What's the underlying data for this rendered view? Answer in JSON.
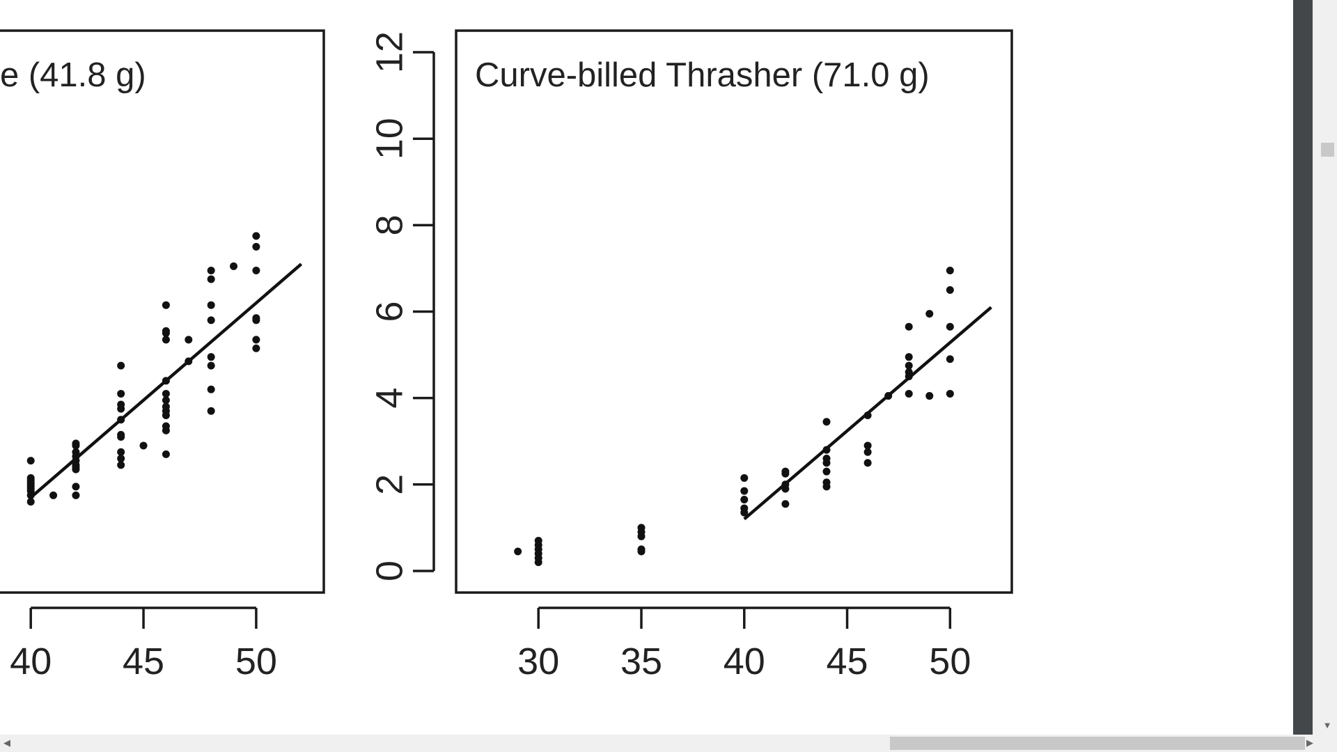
{
  "chart_data": [
    {
      "type": "scatter",
      "title": "e (41.8 g)",
      "xlim": [
        37.8,
        53.0
      ],
      "ylim": [
        -0.5,
        12.5
      ],
      "x_ticks": [
        40,
        45,
        50
      ],
      "x_tick_labels": [
        "40",
        "45",
        "50"
      ],
      "y_ticks": [],
      "points": [
        [
          40,
          1.6
        ],
        [
          40,
          1.75
        ],
        [
          40,
          1.85
        ],
        [
          40,
          1.9
        ],
        [
          40,
          1.95
        ],
        [
          40,
          2.0
        ],
        [
          40,
          2.05
        ],
        [
          40,
          2.1
        ],
        [
          40,
          2.15
        ],
        [
          40,
          2.55
        ],
        [
          41,
          1.75
        ],
        [
          42,
          1.75
        ],
        [
          42,
          1.95
        ],
        [
          42,
          2.35
        ],
        [
          42,
          2.4
        ],
        [
          42,
          2.45
        ],
        [
          42,
          2.55
        ],
        [
          42,
          2.65
        ],
        [
          42,
          2.75
        ],
        [
          42,
          2.9
        ],
        [
          42,
          2.95
        ],
        [
          44,
          2.45
        ],
        [
          44,
          2.6
        ],
        [
          44,
          2.75
        ],
        [
          44,
          3.1
        ],
        [
          44,
          3.15
        ],
        [
          44,
          3.5
        ],
        [
          44,
          3.75
        ],
        [
          44,
          3.85
        ],
        [
          44,
          4.1
        ],
        [
          44,
          4.75
        ],
        [
          45,
          2.9
        ],
        [
          46,
          2.7
        ],
        [
          46,
          3.25
        ],
        [
          46,
          3.35
        ],
        [
          46,
          3.6
        ],
        [
          46,
          3.7
        ],
        [
          46,
          3.8
        ],
        [
          46,
          3.95
        ],
        [
          46,
          4.1
        ],
        [
          46,
          4.4
        ],
        [
          46,
          5.35
        ],
        [
          46,
          5.5
        ],
        [
          46,
          5.55
        ],
        [
          46,
          6.15
        ],
        [
          47,
          4.85
        ],
        [
          47,
          5.35
        ],
        [
          48,
          3.7
        ],
        [
          48,
          4.2
        ],
        [
          48,
          4.75
        ],
        [
          48,
          4.95
        ],
        [
          48,
          5.8
        ],
        [
          48,
          6.15
        ],
        [
          48,
          6.75
        ],
        [
          48,
          6.95
        ],
        [
          49,
          7.05
        ],
        [
          50,
          5.15
        ],
        [
          50,
          5.35
        ],
        [
          50,
          5.8
        ],
        [
          50,
          5.85
        ],
        [
          50,
          6.95
        ],
        [
          50,
          7.5
        ],
        [
          50,
          7.75
        ]
      ],
      "fit_line": {
        "x": [
          40,
          52
        ],
        "y": [
          1.7,
          7.1
        ]
      }
    },
    {
      "type": "scatter",
      "title": "Curve-billed Thrasher (71.0 g)",
      "xlim": [
        26.0,
        53.0
      ],
      "ylim": [
        -0.5,
        12.5
      ],
      "x_ticks": [
        30,
        35,
        40,
        45,
        50
      ],
      "x_tick_labels": [
        "30",
        "35",
        "40",
        "45",
        "50"
      ],
      "y_ticks": [
        0,
        2,
        4,
        6,
        8,
        10,
        12
      ],
      "y_tick_labels": [
        "0",
        "2",
        "4",
        "6",
        "8",
        "10",
        "12"
      ],
      "points": [
        [
          29,
          0.45
        ],
        [
          30,
          0.2
        ],
        [
          30,
          0.3
        ],
        [
          30,
          0.4
        ],
        [
          30,
          0.5
        ],
        [
          30,
          0.6
        ],
        [
          30,
          0.7
        ],
        [
          35,
          0.45
        ],
        [
          35,
          0.5
        ],
        [
          35,
          0.8
        ],
        [
          35,
          0.9
        ],
        [
          35,
          1.0
        ],
        [
          40,
          1.35
        ],
        [
          40,
          1.45
        ],
        [
          40,
          1.65
        ],
        [
          40,
          1.85
        ],
        [
          40,
          2.15
        ],
        [
          42,
          1.55
        ],
        [
          42,
          1.9
        ],
        [
          42,
          2.0
        ],
        [
          42,
          2.25
        ],
        [
          42,
          2.3
        ],
        [
          44,
          1.95
        ],
        [
          44,
          2.05
        ],
        [
          44,
          2.3
        ],
        [
          44,
          2.5
        ],
        [
          44,
          2.6
        ],
        [
          44,
          2.8
        ],
        [
          44,
          3.45
        ],
        [
          46,
          2.5
        ],
        [
          46,
          2.75
        ],
        [
          46,
          2.9
        ],
        [
          46,
          3.6
        ],
        [
          47,
          4.05
        ],
        [
          48,
          4.1
        ],
        [
          48,
          4.5
        ],
        [
          48,
          4.6
        ],
        [
          48,
          4.75
        ],
        [
          48,
          4.95
        ],
        [
          48,
          5.65
        ],
        [
          49,
          4.05
        ],
        [
          49,
          5.95
        ],
        [
          50,
          4.1
        ],
        [
          50,
          4.9
        ],
        [
          50,
          5.65
        ],
        [
          50,
          6.5
        ],
        [
          50,
          6.95
        ]
      ],
      "fit_line": {
        "x": [
          40,
          52
        ],
        "y": [
          1.2,
          6.1
        ]
      }
    }
  ]
}
